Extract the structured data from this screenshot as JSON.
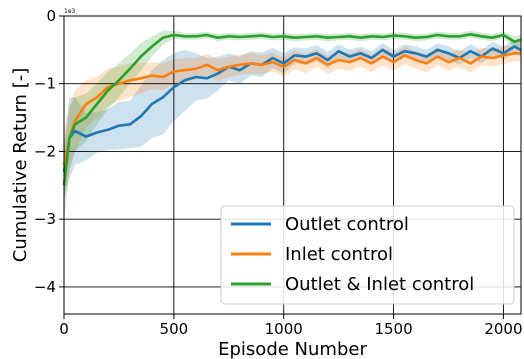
{
  "chart_data": {
    "type": "line",
    "xlabel": "Episode Number",
    "ylabel": "Cumulative Return [-]",
    "y_offset_label": "1e3",
    "xlim": [
      0,
      2080
    ],
    "ylim": [
      -4.4,
      0
    ],
    "xticks": [
      0,
      500,
      1000,
      1500,
      2000
    ],
    "xtick_labels": [
      "0",
      "500",
      "1000",
      "1500",
      "2000"
    ],
    "yticks": [
      0,
      -1,
      -2,
      -3,
      -4
    ],
    "ytick_labels": [
      "0",
      "−1",
      "−2",
      "−3",
      "−4"
    ],
    "grid": true,
    "legend_position": "lower-right",
    "series": [
      {
        "name": "Outlet control",
        "color": "#1f77b4",
        "x": [
          0,
          25,
          50,
          100,
          150,
          200,
          250,
          300,
          350,
          400,
          450,
          500,
          550,
          600,
          650,
          700,
          750,
          800,
          850,
          900,
          950,
          1000,
          1050,
          1100,
          1150,
          1200,
          1250,
          1300,
          1350,
          1400,
          1450,
          1500,
          1550,
          1600,
          1650,
          1700,
          1750,
          1800,
          1850,
          1900,
          1950,
          2000,
          2050,
          2080
        ],
        "y": [
          -2.3,
          -1.8,
          -1.7,
          -1.78,
          -1.72,
          -1.68,
          -1.62,
          -1.6,
          -1.48,
          -1.3,
          -1.2,
          -1.05,
          -0.95,
          -0.9,
          -0.92,
          -0.85,
          -0.75,
          -0.8,
          -0.7,
          -0.72,
          -0.62,
          -0.7,
          -0.58,
          -0.6,
          -0.55,
          -0.65,
          -0.52,
          -0.6,
          -0.55,
          -0.62,
          -0.5,
          -0.6,
          -0.52,
          -0.55,
          -0.6,
          -0.5,
          -0.55,
          -0.62,
          -0.52,
          -0.6,
          -0.48,
          -0.55,
          -0.45,
          -0.5
        ],
        "band": [
          0.4,
          0.6,
          0.5,
          0.35,
          0.3,
          0.3,
          0.35,
          0.35,
          0.45,
          0.5,
          0.55,
          0.5,
          0.45,
          0.35,
          0.3,
          0.25,
          0.2,
          0.2,
          0.18,
          0.18,
          0.15,
          0.15,
          0.12,
          0.12,
          0.12,
          0.12,
          0.1,
          0.1,
          0.1,
          0.1,
          0.1,
          0.1,
          0.1,
          0.1,
          0.1,
          0.1,
          0.1,
          0.1,
          0.1,
          0.1,
          0.1,
          0.1,
          0.1,
          0.1
        ]
      },
      {
        "name": "Inlet control",
        "color": "#ff7f0e",
        "x": [
          0,
          25,
          50,
          100,
          150,
          200,
          250,
          300,
          350,
          400,
          450,
          500,
          550,
          600,
          650,
          700,
          750,
          800,
          850,
          900,
          950,
          1000,
          1050,
          1100,
          1150,
          1200,
          1250,
          1300,
          1350,
          1400,
          1450,
          1500,
          1550,
          1600,
          1650,
          1700,
          1750,
          1800,
          1850,
          1900,
          1950,
          2000,
          2050,
          2080
        ],
        "y": [
          -2.2,
          -1.8,
          -1.55,
          -1.3,
          -1.2,
          -1.05,
          -1.0,
          -0.95,
          -0.92,
          -0.88,
          -0.9,
          -0.82,
          -0.8,
          -0.78,
          -0.72,
          -0.8,
          -0.75,
          -0.72,
          -0.7,
          -0.72,
          -0.68,
          -0.75,
          -0.65,
          -0.7,
          -0.62,
          -0.72,
          -0.65,
          -0.68,
          -0.62,
          -0.7,
          -0.6,
          -0.68,
          -0.58,
          -0.65,
          -0.7,
          -0.6,
          -0.68,
          -0.62,
          -0.7,
          -0.6,
          -0.62,
          -0.58,
          -0.55,
          -0.55
        ],
        "band": [
          0.5,
          0.5,
          0.45,
          0.35,
          0.3,
          0.28,
          0.25,
          0.25,
          0.22,
          0.2,
          0.2,
          0.18,
          0.18,
          0.16,
          0.16,
          0.16,
          0.15,
          0.15,
          0.15,
          0.14,
          0.14,
          0.14,
          0.14,
          0.14,
          0.13,
          0.13,
          0.13,
          0.13,
          0.13,
          0.13,
          0.13,
          0.13,
          0.13,
          0.13,
          0.13,
          0.13,
          0.13,
          0.13,
          0.13,
          0.13,
          0.13,
          0.13,
          0.12,
          0.12
        ]
      },
      {
        "name": "Outlet & Inlet control",
        "color": "#2ca02c",
        "x": [
          0,
          25,
          50,
          100,
          150,
          200,
          250,
          300,
          350,
          400,
          450,
          500,
          550,
          600,
          650,
          700,
          750,
          800,
          850,
          900,
          950,
          1000,
          1050,
          1100,
          1150,
          1200,
          1250,
          1300,
          1350,
          1400,
          1450,
          1500,
          1550,
          1600,
          1650,
          1700,
          1750,
          1800,
          1850,
          1900,
          1950,
          2000,
          2050,
          2080
        ],
        "y": [
          -2.5,
          -1.8,
          -1.6,
          -1.5,
          -1.3,
          -1.1,
          -0.95,
          -0.78,
          -0.6,
          -0.45,
          -0.32,
          -0.28,
          -0.3,
          -0.3,
          -0.28,
          -0.32,
          -0.3,
          -0.31,
          -0.3,
          -0.29,
          -0.31,
          -0.3,
          -0.32,
          -0.31,
          -0.3,
          -0.32,
          -0.31,
          -0.3,
          -0.32,
          -0.3,
          -0.31,
          -0.29,
          -0.3,
          -0.32,
          -0.31,
          -0.28,
          -0.3,
          -0.3,
          -0.27,
          -0.3,
          -0.32,
          -0.28,
          -0.38,
          -0.35
        ],
        "band": [
          0.5,
          0.45,
          0.4,
          0.35,
          0.3,
          0.28,
          0.25,
          0.22,
          0.2,
          0.15,
          0.1,
          0.06,
          0.05,
          0.05,
          0.05,
          0.05,
          0.05,
          0.05,
          0.05,
          0.05,
          0.05,
          0.05,
          0.05,
          0.05,
          0.05,
          0.05,
          0.05,
          0.05,
          0.05,
          0.05,
          0.05,
          0.05,
          0.05,
          0.05,
          0.05,
          0.05,
          0.05,
          0.05,
          0.05,
          0.05,
          0.05,
          0.05,
          0.08,
          0.08
        ]
      }
    ]
  }
}
